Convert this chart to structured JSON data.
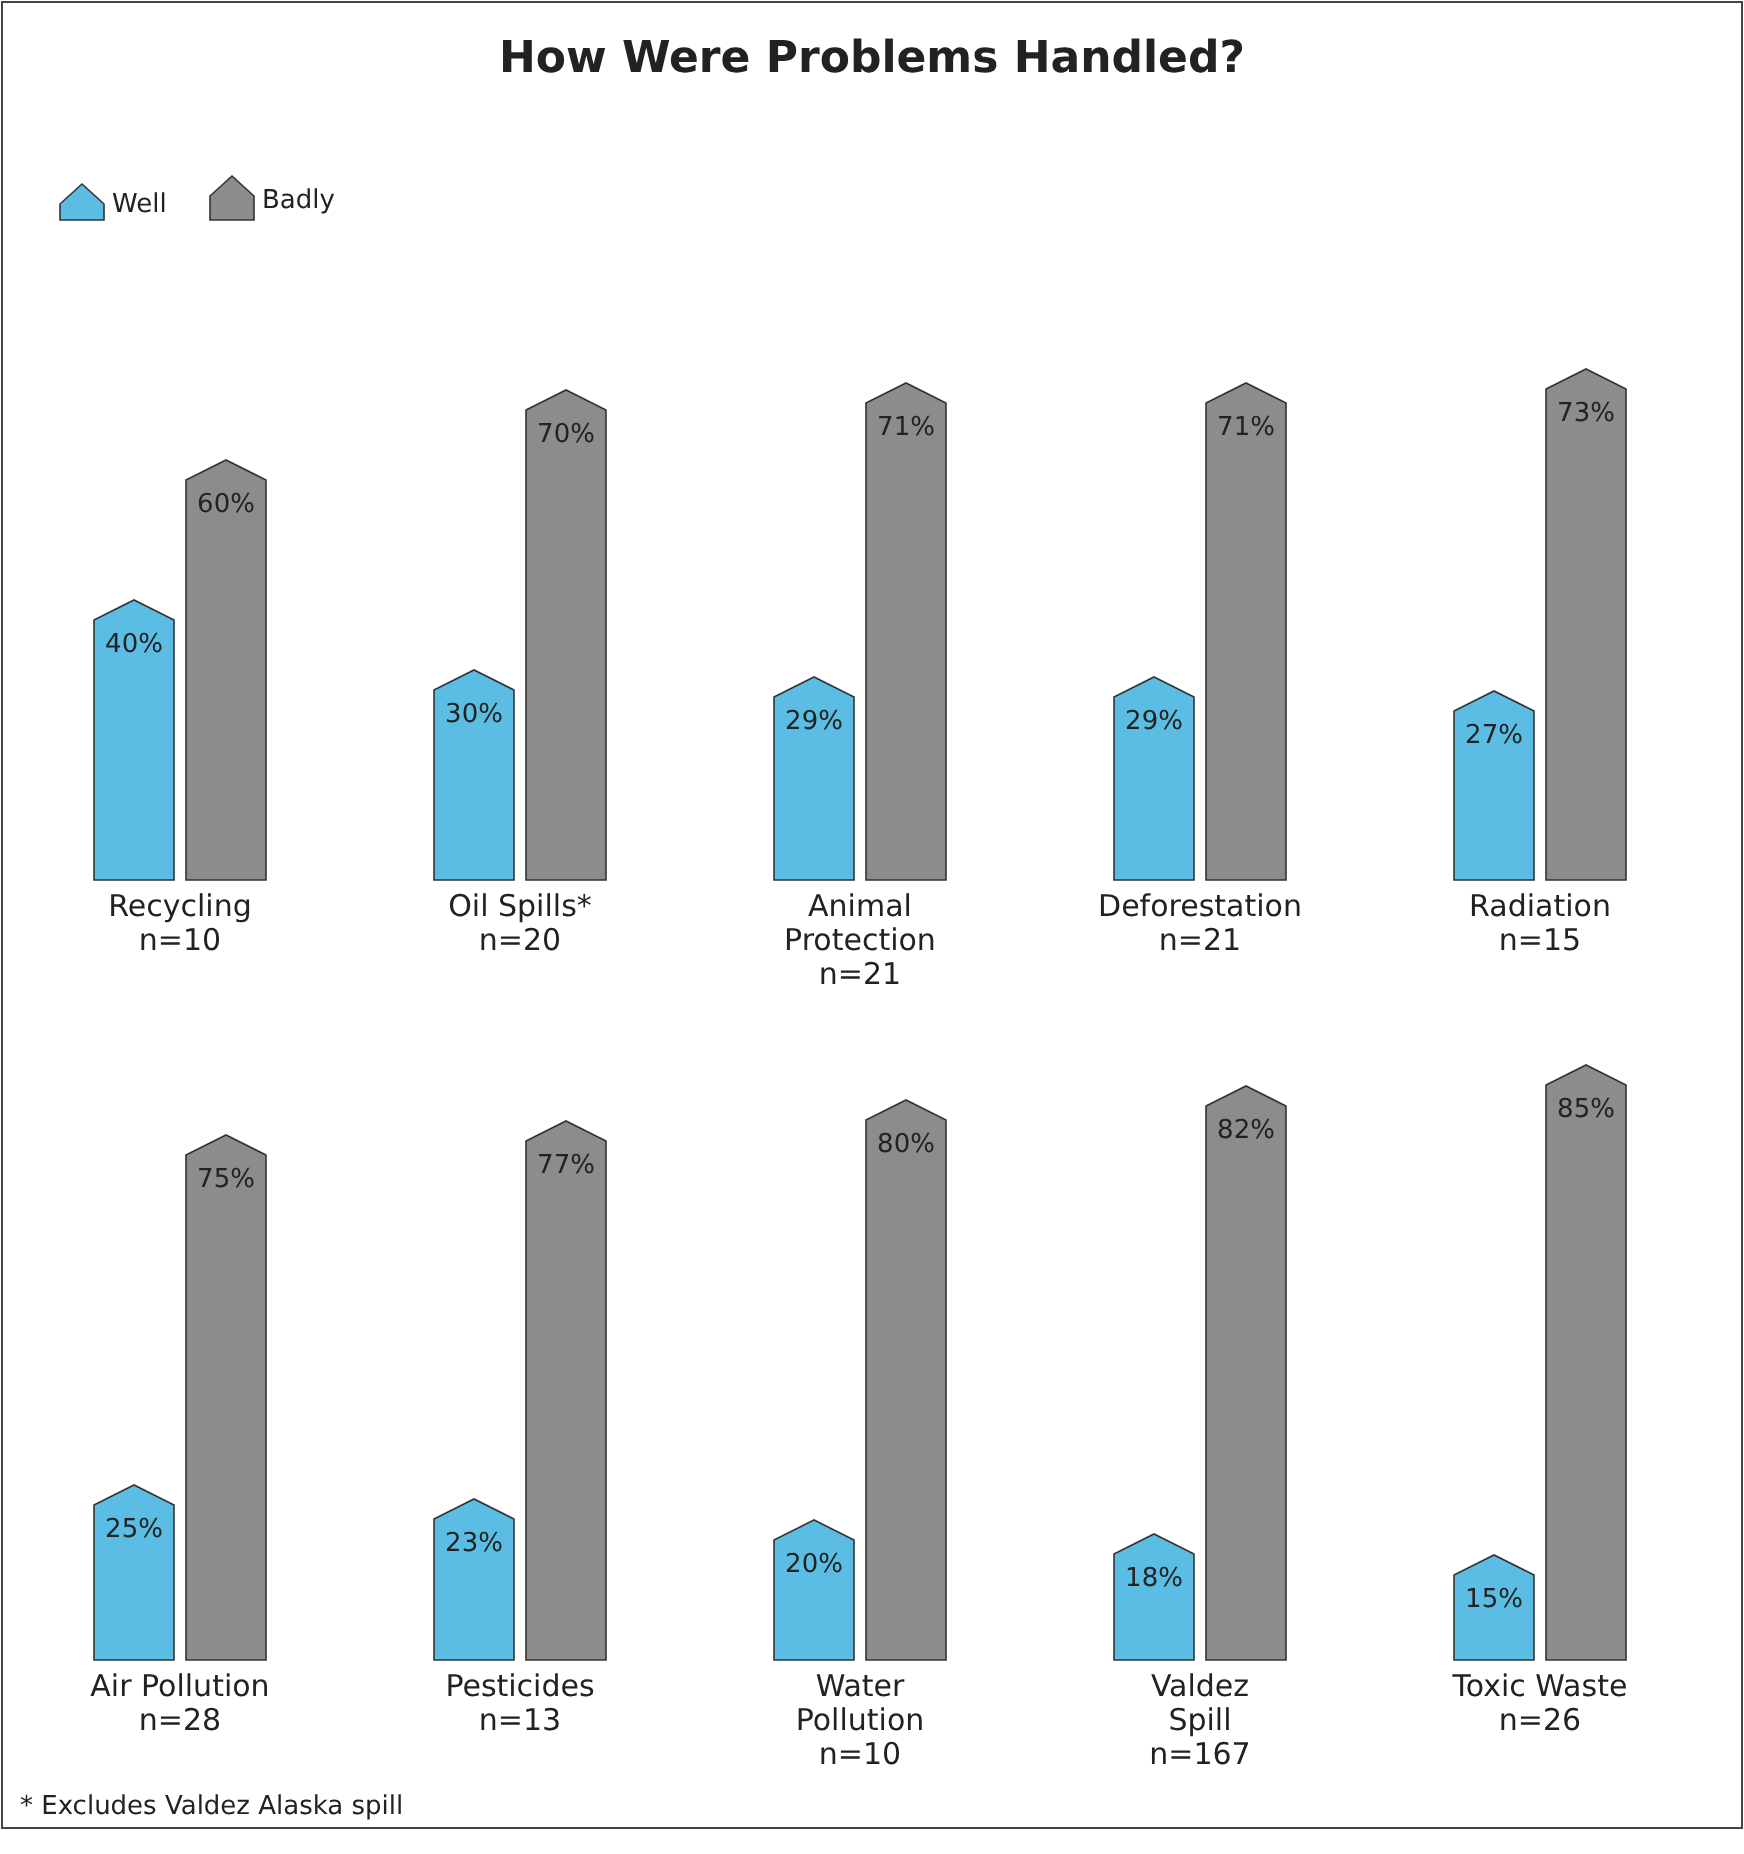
{
  "chart_data": [
    {
      "type": "bar",
      "title": "How Were Problems Handled?",
      "categories": [
        "Recycling\nn=10",
        "Oil Spills*\nn=20",
        "Animal\nProtection\nn=21",
        "Deforestation\nn=21",
        "Radiation\nn=15"
      ],
      "series": [
        {
          "name": "Well",
          "color": "#5bbde3",
          "values": [
            40,
            30,
            29,
            29,
            27
          ],
          "value_labels": [
            "40%",
            "30%",
            "29%",
            "29%",
            "27%"
          ]
        },
        {
          "name": "Badly",
          "color": "#8c8c8c",
          "values": [
            60,
            70,
            71,
            71,
            73
          ],
          "value_labels": [
            "60%",
            "70%",
            "71%",
            "71%",
            "73%"
          ]
        }
      ],
      "legend": "top left"
    },
    {
      "type": "bar",
      "categories": [
        "Air Pollution\nn=28",
        "Pesticides\nn=13",
        "Water\nPollution\nn=10",
        "Valdez\nSpill\nn=167",
        "Toxic Waste\nn=26"
      ],
      "series": [
        {
          "color": "#5bbde3",
          "values": [
            25,
            23,
            20,
            18,
            15
          ],
          "value_labels": [
            "25%",
            "23%",
            "20%",
            "18%",
            "15%"
          ]
        },
        {
          "color": "#8c8c8c",
          "values": [
            75,
            77,
            80,
            82,
            85
          ],
          "value_labels": [
            "75%",
            "77%",
            "80%",
            "82%",
            "85%"
          ]
        }
      ],
      "annotations": [
        "* Excludes Valdez Alaska spill"
      ]
    }
  ]
}
